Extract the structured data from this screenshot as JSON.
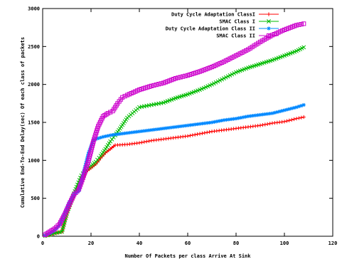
{
  "chart_data": {
    "type": "line",
    "title": "",
    "xlabel": "Number Of Packets per class Arrive At Sink",
    "ylabel": "Cumulative End-To-End Delay(sec) Of each class of packets",
    "xlim": [
      0,
      120
    ],
    "ylim": [
      0,
      3000
    ],
    "xticks": [
      0,
      20,
      40,
      60,
      80,
      100,
      120
    ],
    "yticks": [
      0,
      500,
      1000,
      1500,
      2000,
      2500,
      3000
    ],
    "grid": false,
    "legend_position": "top-right",
    "series": [
      {
        "name": "Duty Cycle Adaptation ClassI",
        "color": "#ff0000",
        "marker": "plus",
        "x": [
          1,
          3,
          5,
          8,
          10,
          12,
          14,
          16,
          18,
          20,
          22,
          24,
          26,
          28,
          30,
          35,
          40,
          45,
          50,
          55,
          60,
          65,
          70,
          75,
          80,
          85,
          90,
          95,
          100,
          105,
          108
        ],
        "y": [
          5,
          20,
          40,
          60,
          300,
          450,
          600,
          700,
          850,
          900,
          950,
          1030,
          1100,
          1150,
          1200,
          1210,
          1230,
          1260,
          1280,
          1300,
          1320,
          1350,
          1380,
          1400,
          1420,
          1440,
          1460,
          1490,
          1510,
          1550,
          1570
        ]
      },
      {
        "name": "SMAC Class I",
        "color": "#00bb00",
        "marker": "x",
        "x": [
          1,
          3,
          5,
          8,
          10,
          12,
          14,
          16,
          18,
          20,
          22,
          24,
          26,
          28,
          30,
          32,
          35,
          40,
          45,
          50,
          55,
          60,
          65,
          70,
          75,
          80,
          85,
          90,
          95,
          100,
          105,
          108
        ],
        "y": [
          5,
          20,
          40,
          60,
          300,
          480,
          650,
          800,
          880,
          930,
          980,
          1060,
          1150,
          1250,
          1330,
          1420,
          1560,
          1700,
          1730,
          1760,
          1820,
          1870,
          1930,
          2000,
          2080,
          2160,
          2220,
          2270,
          2320,
          2380,
          2440,
          2490
        ]
      },
      {
        "name": "Duty Cycle Adaptation Class II",
        "color": "#0088ff",
        "marker": "star",
        "x": [
          1,
          3,
          5,
          7,
          9,
          11,
          13,
          15,
          17,
          19,
          21,
          23,
          25,
          28,
          30,
          35,
          40,
          45,
          50,
          55,
          60,
          65,
          70,
          75,
          80,
          85,
          90,
          95,
          100,
          105,
          108
        ],
        "y": [
          10,
          40,
          80,
          150,
          300,
          450,
          550,
          600,
          850,
          1100,
          1270,
          1290,
          1310,
          1330,
          1340,
          1360,
          1380,
          1400,
          1420,
          1440,
          1460,
          1480,
          1500,
          1530,
          1550,
          1580,
          1600,
          1620,
          1660,
          1700,
          1730
        ]
      },
      {
        "name": "SMAC Class II",
        "color": "#cc00cc",
        "marker": "square",
        "x": [
          1,
          3,
          5,
          7,
          9,
          11,
          13,
          15,
          17,
          19,
          21,
          23,
          25,
          27,
          29,
          31,
          33,
          35,
          40,
          45,
          50,
          55,
          60,
          65,
          70,
          75,
          80,
          85,
          90,
          95,
          100,
          105,
          108
        ],
        "y": [
          20,
          60,
          100,
          160,
          280,
          420,
          550,
          620,
          800,
          1000,
          1250,
          1450,
          1580,
          1620,
          1650,
          1750,
          1830,
          1860,
          1930,
          1980,
          2020,
          2080,
          2120,
          2170,
          2230,
          2300,
          2380,
          2460,
          2560,
          2650,
          2720,
          2780,
          2800
        ]
      }
    ]
  }
}
